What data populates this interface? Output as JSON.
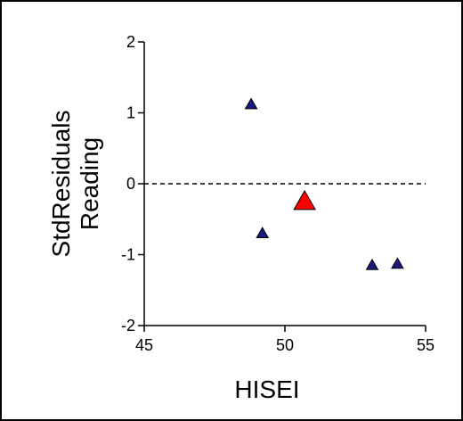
{
  "chart_data": {
    "type": "scatter",
    "xlabel": "HISEI",
    "ylabel_lines": [
      "StdResiduals",
      "Reading"
    ],
    "xlim": [
      45,
      55
    ],
    "ylim": [
      -2,
      2
    ],
    "xticks": [
      "45",
      "50",
      "55"
    ],
    "yticks": [
      "-2",
      "-1",
      "0",
      "1",
      "2"
    ],
    "reference_line": {
      "y": 0,
      "style": "dashed"
    },
    "grid": false,
    "points": [
      {
        "x": 48.8,
        "y": 1.12,
        "color": "#1a1a7a",
        "size": "small"
      },
      {
        "x": 49.2,
        "y": -0.7,
        "color": "#1a1a7a",
        "size": "small"
      },
      {
        "x": 50.7,
        "y": -0.25,
        "color": "#ff0000",
        "size": "large"
      },
      {
        "x": 53.1,
        "y": -1.15,
        "color": "#1a1a7a",
        "size": "small"
      },
      {
        "x": 54.0,
        "y": -1.13,
        "color": "#1a1a7a",
        "size": "small"
      }
    ]
  }
}
